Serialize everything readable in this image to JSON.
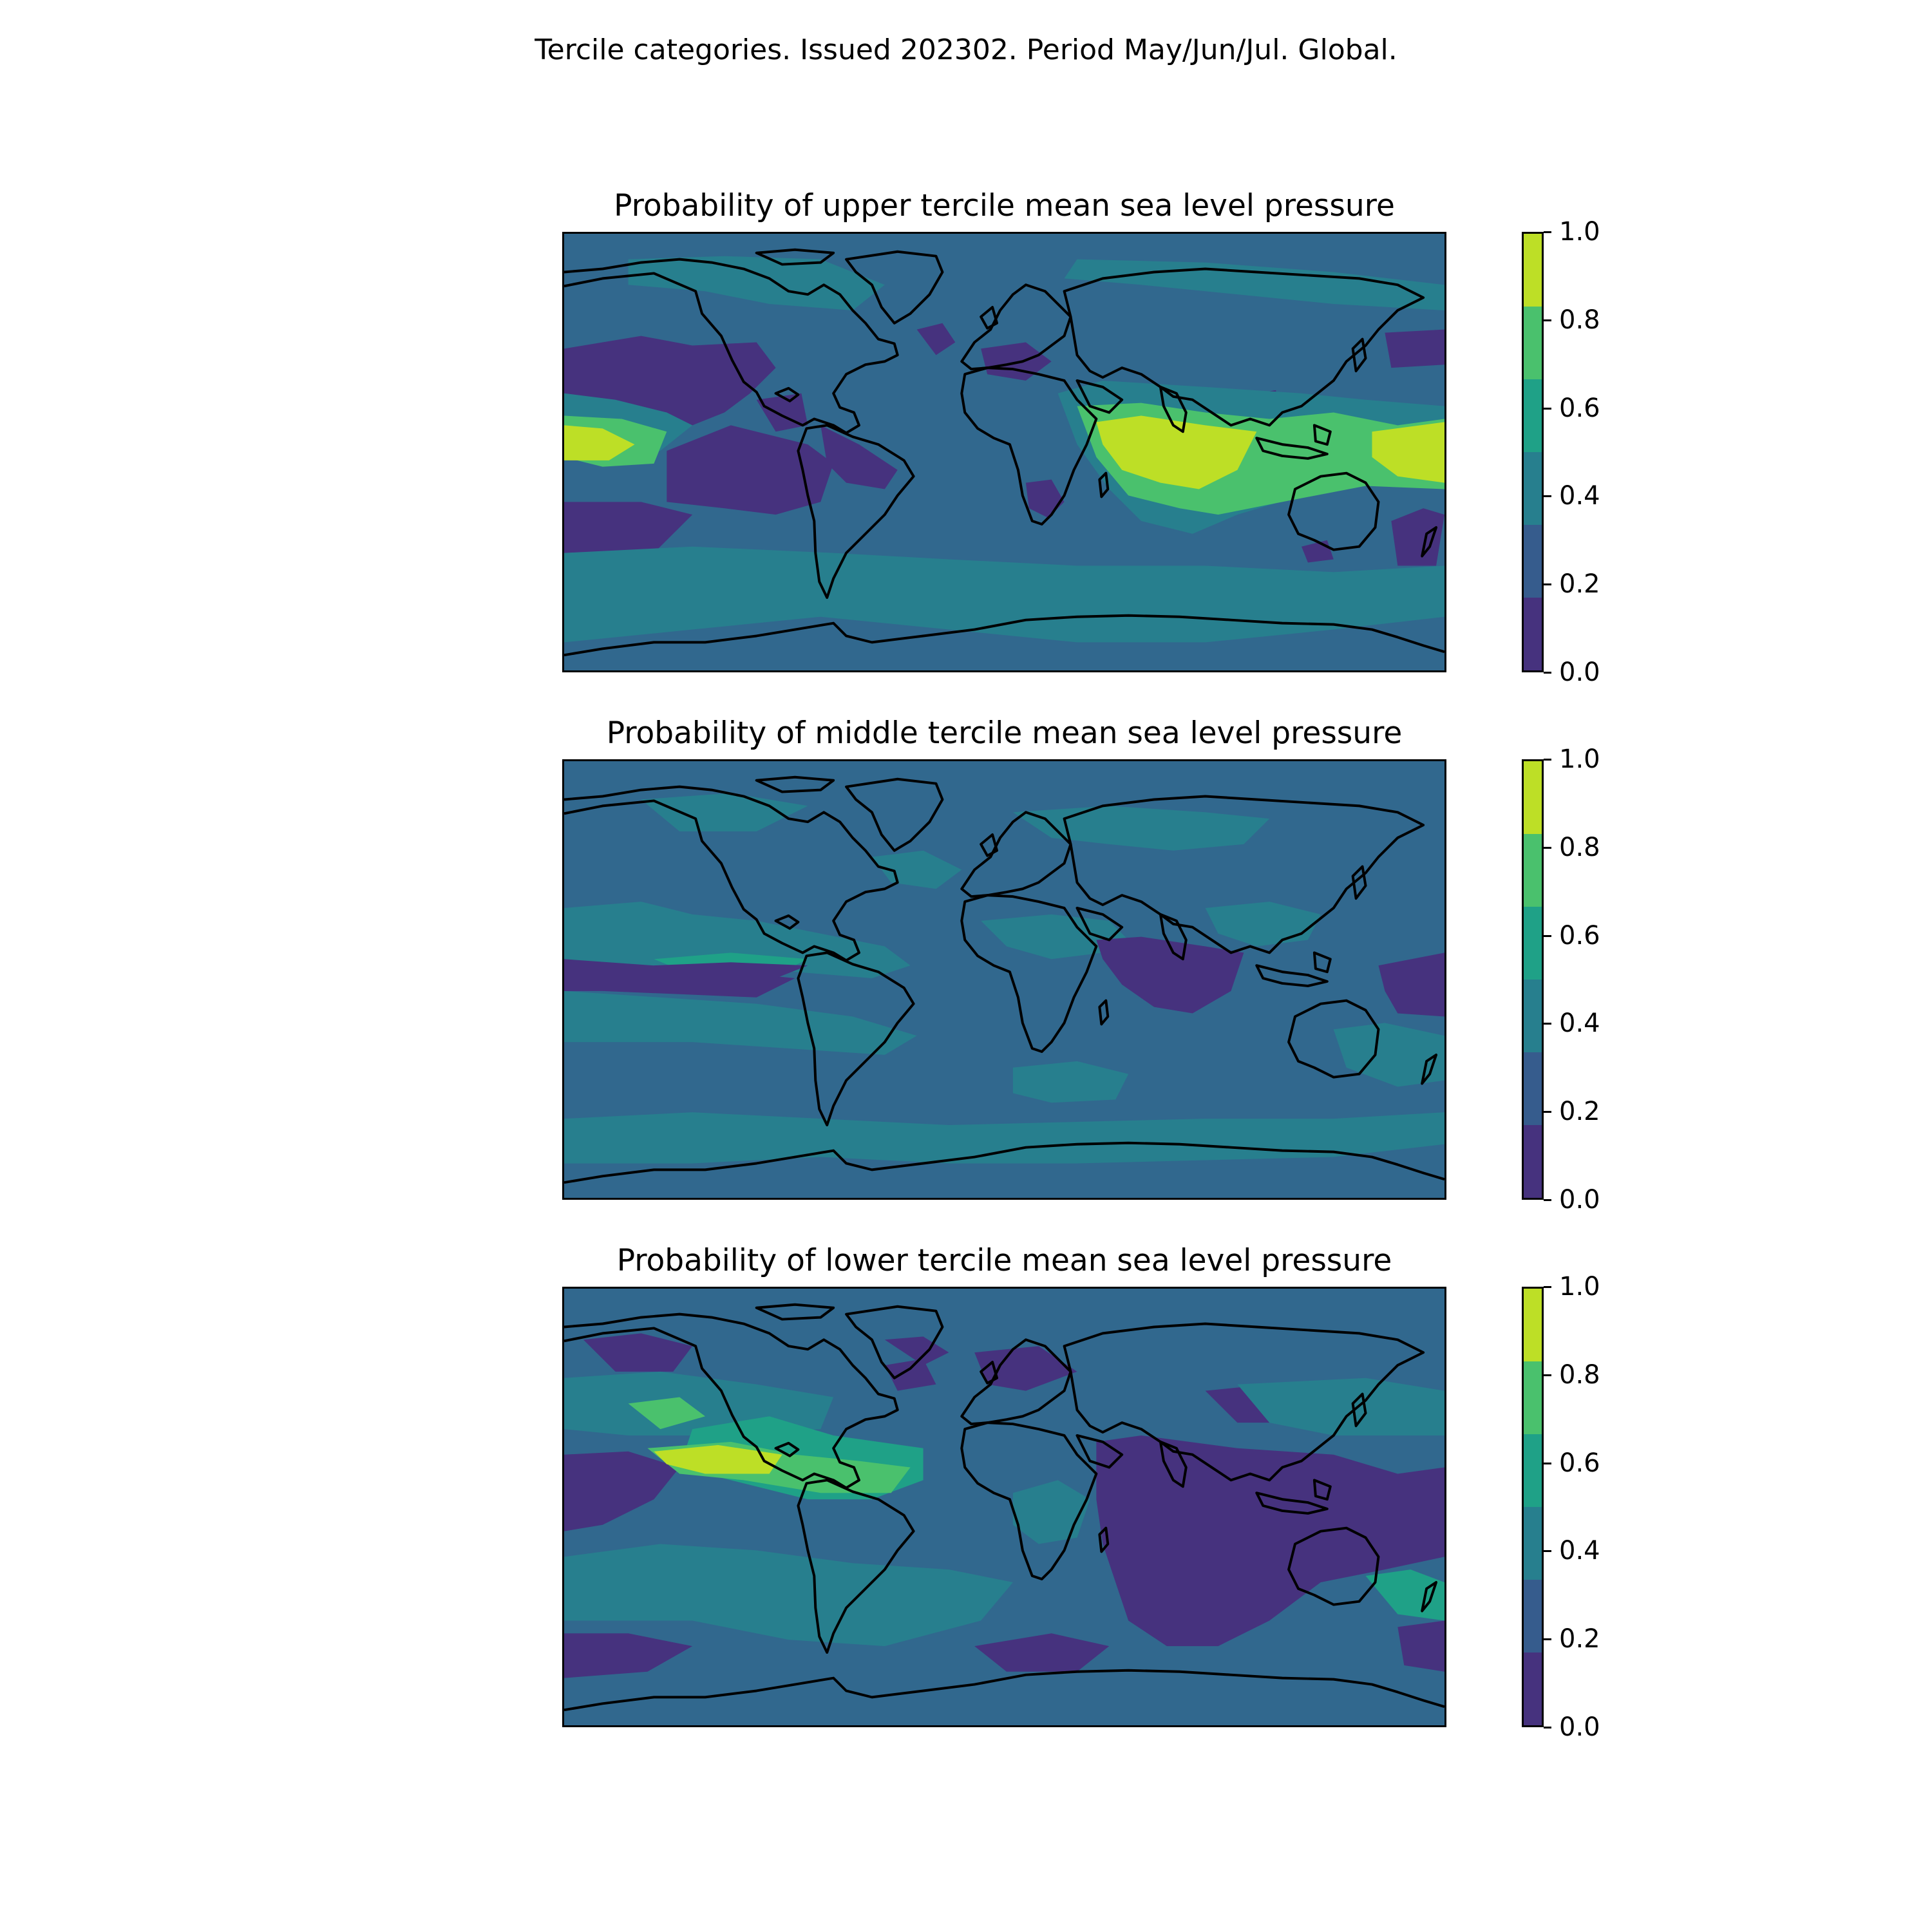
{
  "figure": {
    "suptitle": "Tercile categories. Issued 202302. Period May/Jun/Jul. Global."
  },
  "colorbar": {
    "ticks": [
      "0.0",
      "0.2",
      "0.4",
      "0.6",
      "0.8",
      "1.0"
    ],
    "tick_values": [
      0.0,
      0.2,
      0.4,
      0.6,
      0.8,
      1.0
    ],
    "colors": [
      "#46327e",
      "#365c8d",
      "#277f8e",
      "#1fa187",
      "#4ac16d",
      "#bddf26"
    ]
  },
  "panels": [
    {
      "key": "upper",
      "title": "Probability of upper tercile mean sea level pressure"
    },
    {
      "key": "middle",
      "title": "Probability of middle tercile mean sea level pressure"
    },
    {
      "key": "lower",
      "title": "Probability of lower tercile mean sea level pressure"
    }
  ],
  "chart_data": [
    {
      "type": "heatmap",
      "title": "Probability of upper tercile mean sea level pressure",
      "levels": [
        0.0,
        0.2,
        0.4,
        0.6,
        0.8,
        1.0
      ],
      "colorbar_ticks": [
        0.0,
        0.2,
        0.4,
        0.6,
        0.8,
        1.0
      ],
      "colormap": "viridis",
      "coastlines": true,
      "projection": "global lon/lat"
    },
    {
      "type": "heatmap",
      "title": "Probability of middle tercile mean sea level pressure",
      "levels": [
        0.0,
        0.2,
        0.4,
        0.6,
        0.8,
        1.0
      ],
      "colorbar_ticks": [
        0.0,
        0.2,
        0.4,
        0.6,
        0.8,
        1.0
      ],
      "colormap": "viridis",
      "coastlines": true,
      "projection": "global lon/lat"
    },
    {
      "type": "heatmap",
      "title": "Probability of lower tercile mean sea level pressure",
      "levels": [
        0.0,
        0.2,
        0.4,
        0.6,
        0.8,
        1.0
      ],
      "colorbar_ticks": [
        0.0,
        0.2,
        0.4,
        0.6,
        0.8,
        1.0
      ],
      "colormap": "viridis",
      "coastlines": true,
      "projection": "global lon/lat"
    }
  ]
}
